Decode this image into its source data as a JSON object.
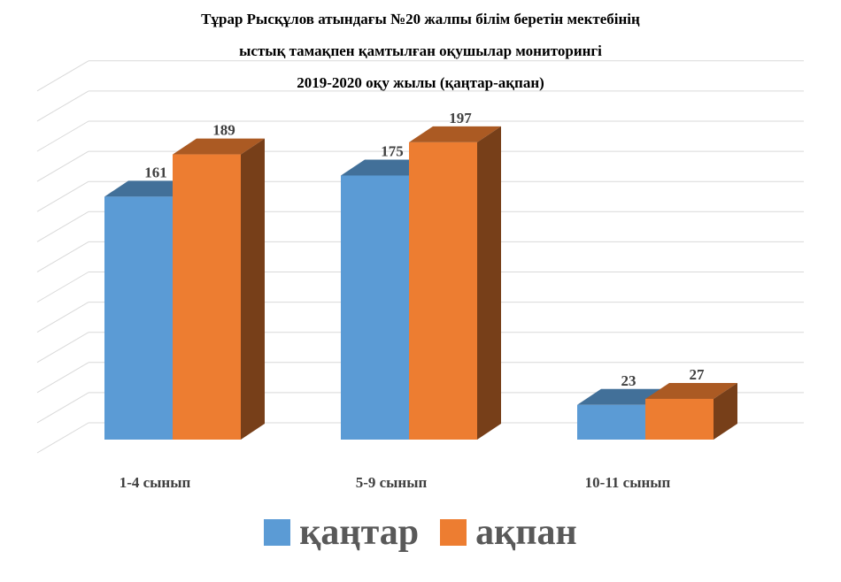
{
  "title_lines": [
    "Тұрар Рысқұлов атындағы №20 жалпы білім беретін мектебінің",
    "ыстық тамақпен қамтылған оқушылар мониторингі",
    "2019-2020 оқу жылы (қаңтар-ақпан)"
  ],
  "chart_data": {
    "type": "bar",
    "title": "Тұрар Рысқұлов атындағы №20 жалпы білім беретін мектебінің ыстық тамақпен қамтылған оқушылар мониторингі 2019-2020 оқу жылы (қаңтар-ақпан)",
    "categories": [
      "1-4 сынып",
      "5-9 сынып",
      "10-11 сынып"
    ],
    "series": [
      {
        "name": "қаңтар",
        "values": [
          161,
          175,
          23
        ],
        "color": "#5B9BD5"
      },
      {
        "name": "ақпан",
        "values": [
          189,
          197,
          27
        ],
        "color": "#ED7D31"
      }
    ],
    "ylim": [
      0,
      250
    ],
    "grid": true,
    "legend_position": "bottom",
    "style": "3d-clustered-column"
  },
  "legend": [
    {
      "label": "қаңтар",
      "color": "#5B9BD5"
    },
    {
      "label": "ақпан",
      "color": "#ED7D31"
    }
  ]
}
